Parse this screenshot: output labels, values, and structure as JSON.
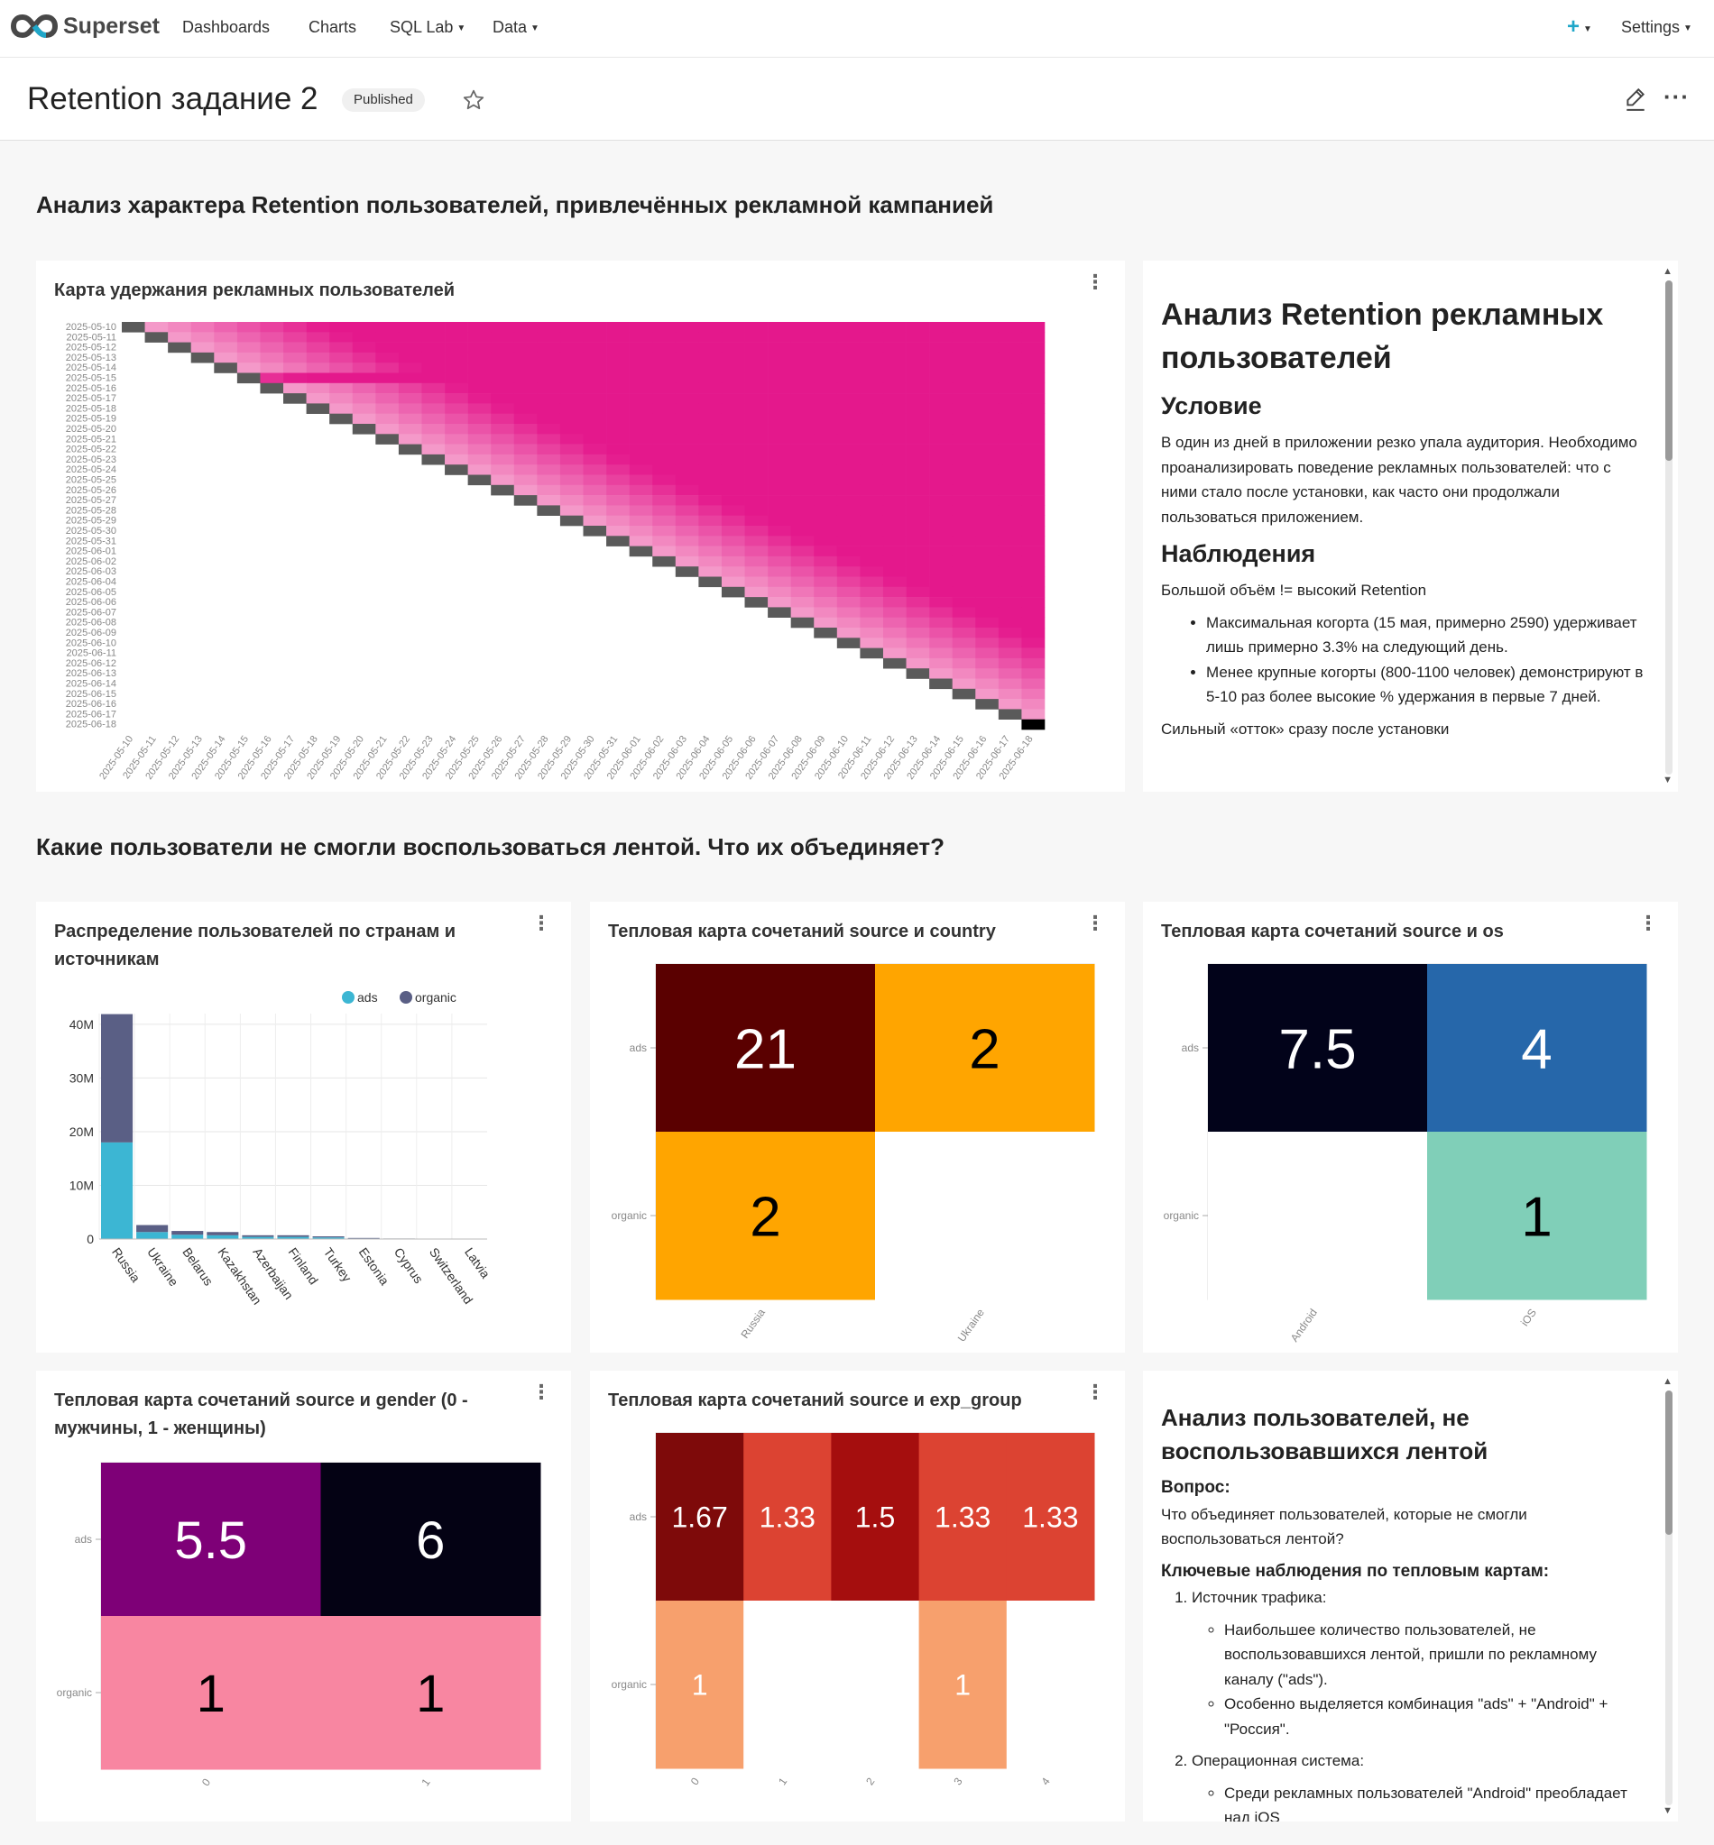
{
  "nav": {
    "logo": "Superset",
    "items": [
      {
        "label": "Dashboards",
        "dropdown": false
      },
      {
        "label": "Charts",
        "dropdown": false
      },
      {
        "label": "SQL Lab",
        "dropdown": true
      },
      {
        "label": "Data",
        "dropdown": true
      }
    ],
    "settings": "Settings"
  },
  "dashboard": {
    "title": "Retention задание 2",
    "status": "Published"
  },
  "sections": {
    "s1": "Анализ характера Retention пользователей, привлечённых рекламной кампанией",
    "s2": "Какие пользователи не смогли воспользоваться лентой. Что их объединяет?"
  },
  "retention": {
    "title": "Карта удержания рекламных пользователей",
    "dates": [
      "2025-05-10",
      "2025-05-11",
      "2025-05-12",
      "2025-05-13",
      "2025-05-14",
      "2025-05-15",
      "2025-05-16",
      "2025-05-17",
      "2025-05-18",
      "2025-05-19",
      "2025-05-20",
      "2025-05-21",
      "2025-05-22",
      "2025-05-23",
      "2025-05-24",
      "2025-05-25",
      "2025-05-26",
      "2025-05-27",
      "2025-05-28",
      "2025-05-29",
      "2025-05-30",
      "2025-05-31",
      "2025-06-01",
      "2025-06-02",
      "2025-06-03",
      "2025-06-04",
      "2025-06-05",
      "2025-06-06",
      "2025-06-07",
      "2025-06-08",
      "2025-06-09",
      "2025-06-10",
      "2025-06-11",
      "2025-06-12",
      "2025-06-13",
      "2025-06-14",
      "2025-06-15",
      "2025-06-16",
      "2025-06-17",
      "2025-06-18"
    ]
  },
  "text1": {
    "h2": "Анализ Retention рекламных пользователей",
    "h3a": "Условие",
    "p1": "В один из дней в приложении резко упала аудитория. Необходимо проанализировать поведение рекламных пользователей: что с ними стало после установки, как часто они продолжали пользоваться приложением.",
    "h3b": "Наблюдения",
    "p2": "Большой объём != высокий Retention",
    "li1": "Максимальная когорта (15 мая, примерно 2590) удерживает лишь примерно 3.3% на следующий день.",
    "li2": "Менее крупные когорты (800-1100 человек) демонстрируют в 5-10 раз более высокие % удержания в первые 7 дней.",
    "p3": "Сильный «отток» сразу после установки"
  },
  "bar": {
    "title": "Распределение пользователей по странам и источникам",
    "legend": [
      {
        "name": "ads",
        "color": "#3cb6d3"
      },
      {
        "name": "organic",
        "color": "#5a5f85"
      }
    ],
    "yticks": [
      "40M",
      "30M",
      "20M",
      "10M",
      "0"
    ]
  },
  "chart_data": [
    {
      "type": "bar",
      "title": "Распределение пользователей по странам и источникам",
      "categories": [
        "Russia",
        "Ukraine",
        "Belarus",
        "Kazakhstan",
        "Azerbaijan",
        "Finland",
        "Turkey",
        "Estonia",
        "Cyprus",
        "Switzerland",
        "Latvia"
      ],
      "series": [
        {
          "name": "ads",
          "values": [
            18,
            1.3,
            0.8,
            0.7,
            0.4,
            0.4,
            0.3,
            0.1,
            0.05,
            0.04,
            0.03
          ]
        },
        {
          "name": "organic",
          "values": [
            23.9,
            1.3,
            0.7,
            0.6,
            0.3,
            0.3,
            0.2,
            0.1,
            0.05,
            0.04,
            0.03
          ]
        }
      ],
      "ylim": [
        0,
        42
      ],
      "unit": "M",
      "stacked": true
    },
    {
      "type": "heatmap",
      "title": "Тепловая карта сочетаний source и country",
      "x": [
        "Russia",
        "Ukraine"
      ],
      "y": [
        "ads",
        "organic"
      ],
      "values": [
        [
          21,
          2
        ],
        [
          2,
          null
        ]
      ]
    },
    {
      "type": "heatmap",
      "title": "Тепловая карта сочетаний source и os",
      "x": [
        "Android",
        "iOS"
      ],
      "y": [
        "ads",
        "organic"
      ],
      "values": [
        [
          7.5,
          4
        ],
        [
          null,
          1
        ]
      ]
    },
    {
      "type": "heatmap",
      "title": "Тепловая карта сочетаний source и gender (0 - мужчины, 1 - женщины)",
      "x": [
        "0",
        "1"
      ],
      "y": [
        "ads",
        "organic"
      ],
      "values": [
        [
          5.5,
          6
        ],
        [
          1,
          1
        ]
      ]
    },
    {
      "type": "heatmap",
      "title": "Тепловая карта сочетаний source и exp_group",
      "x": [
        "0",
        "1",
        "2",
        "3",
        "4"
      ],
      "y": [
        "ads",
        "organic"
      ],
      "values": [
        [
          1.67,
          1.33,
          1.5,
          1.33,
          1.33
        ],
        [
          1,
          null,
          null,
          1,
          null
        ]
      ]
    }
  ],
  "hm_country": {
    "title": "Тепловая карта сочетаний source и country",
    "x": [
      "Russia",
      "Ukraine"
    ],
    "y": [
      "ads",
      "organic"
    ],
    "cells": [
      {
        "v": "21",
        "bg": "#5a0000",
        "fg": "#fff"
      },
      {
        "v": "2",
        "bg": "#ffa500",
        "fg": "#000"
      },
      {
        "v": "2",
        "bg": "#ffa500",
        "fg": "#000"
      },
      {
        "v": "",
        "bg": "#ffffff",
        "fg": "#000"
      }
    ]
  },
  "hm_os": {
    "title": "Тепловая карта сочетаний source и os",
    "x": [
      "Android",
      "iOS"
    ],
    "y": [
      "ads",
      "organic"
    ],
    "cells": [
      {
        "v": "7.5",
        "bg": "#02031a",
        "fg": "#fff"
      },
      {
        "v": "4",
        "bg": "#2667aa",
        "fg": "#fff"
      },
      {
        "v": "",
        "bg": "#ffffff",
        "fg": "#000"
      },
      {
        "v": "1",
        "bg": "#80cfb8",
        "fg": "#000"
      }
    ]
  },
  "hm_gender": {
    "title": "Тепловая карта сочетаний source и gender (0 - мужчины, 1 - женщины)",
    "x": [
      "0",
      "1"
    ],
    "y": [
      "ads",
      "organic"
    ],
    "cells": [
      {
        "v": "5.5",
        "bg": "#7e0077",
        "fg": "#fff"
      },
      {
        "v": "6",
        "bg": "#040214",
        "fg": "#fff"
      },
      {
        "v": "1",
        "bg": "#f886a1",
        "fg": "#000"
      },
      {
        "v": "1",
        "bg": "#f886a1",
        "fg": "#000"
      }
    ]
  },
  "hm_exp": {
    "title": "Тепловая карта сочетаний source и exp_group",
    "x": [
      "0",
      "1",
      "2",
      "3",
      "4"
    ],
    "y": [
      "ads",
      "organic"
    ],
    "cells": [
      {
        "v": "1.67",
        "bg": "#7e0a0a",
        "fg": "#fff"
      },
      {
        "v": "1.33",
        "bg": "#dc4332",
        "fg": "#fff"
      },
      {
        "v": "1.5",
        "bg": "#a50e0e",
        "fg": "#fff"
      },
      {
        "v": "1.33",
        "bg": "#dc4332",
        "fg": "#fff"
      },
      {
        "v": "1.33",
        "bg": "#dc4332",
        "fg": "#fff"
      },
      {
        "v": "1",
        "bg": "#f7a06d",
        "fg": "#fff"
      },
      {
        "v": "",
        "bg": "#ffffff",
        "fg": "#000"
      },
      {
        "v": "",
        "bg": "#ffffff",
        "fg": "#000"
      },
      {
        "v": "1",
        "bg": "#f7a06d",
        "fg": "#fff"
      },
      {
        "v": "",
        "bg": "#ffffff",
        "fg": "#000"
      }
    ]
  },
  "text2": {
    "h2": "Анализ пользователей, не воспользовавшихся лентой",
    "q": "Вопрос:",
    "qtext": "Что объединяет пользователей, которые не смогли воспользоваться лентой?",
    "obs": "Ключевые наблюдения по тепловым картам:",
    "n1": "Источник трафика:",
    "n1a": "Наибольшее количество пользователей, не воспользовавшихся лентой, пришли по рекламному каналу (\"ads\").",
    "n1b": "Особенно выделяется комбинация \"ads\" + \"Android\" + \"Россия\".",
    "n2": "Операционная система:",
    "n2a": "Среди рекламных пользователей \"Android\" преобладает над iOS"
  }
}
